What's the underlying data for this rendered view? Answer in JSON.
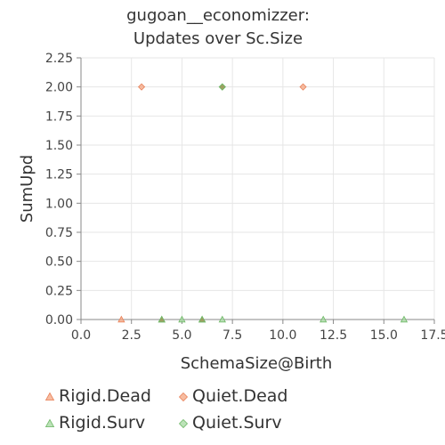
{
  "chart_data": {
    "type": "scatter",
    "title": [
      "gugoan__economizzer:",
      "Updates over Sc.Size"
    ],
    "xlabel": "SchemaSize@Birth",
    "ylabel": "SumUpd",
    "xlim": [
      0,
      17.5
    ],
    "ylim": [
      0,
      2.25
    ],
    "xticks": [
      "0.0",
      "2.5",
      "5.0",
      "7.5",
      "10.0",
      "12.5",
      "15.0",
      "17.5"
    ],
    "yticks": [
      "0.00",
      "0.25",
      "0.50",
      "0.75",
      "1.00",
      "1.25",
      "1.50",
      "1.75",
      "2.00",
      "2.25"
    ],
    "grid": true,
    "legend_placement": "bottom",
    "series": [
      {
        "name": "Rigid.Dead",
        "marker": "triangle",
        "color": "#f4a582",
        "points": [
          [
            2,
            0
          ],
          [
            4,
            0
          ],
          [
            6,
            0
          ]
        ]
      },
      {
        "name": "Quiet.Dead",
        "marker": "diamond",
        "color": "#f4a582",
        "points": [
          [
            3,
            2
          ],
          [
            7,
            2
          ],
          [
            11,
            2
          ]
        ]
      },
      {
        "name": "Rigid.Surv",
        "marker": "triangle",
        "color": "#a6d8a0",
        "points": [
          [
            4,
            0
          ],
          [
            5,
            0
          ],
          [
            6,
            0
          ],
          [
            7,
            0
          ],
          [
            12,
            0
          ],
          [
            16,
            0
          ]
        ]
      },
      {
        "name": "Quiet.Surv",
        "marker": "diamond",
        "color": "#a6d8a0",
        "points": [
          [
            7,
            2
          ]
        ]
      }
    ]
  }
}
